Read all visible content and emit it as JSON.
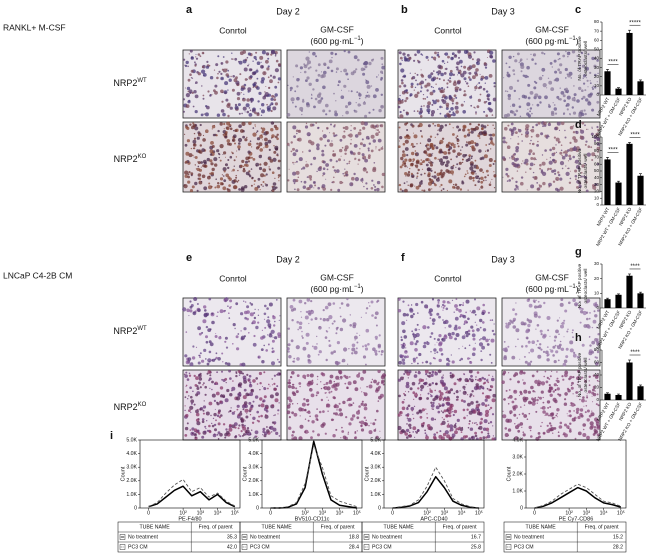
{
  "figure": {
    "genotypes": [
      {
        "base": "NRP2",
        "sup": "WT"
      },
      {
        "base": "NRP2",
        "sup": "KO"
      }
    ],
    "rows": [
      {
        "condition": "RANKL+ M-CSF",
        "panels": [
          {
            "letter": "a",
            "day": "Day 2",
            "control": "Conrtol",
            "treatment": [
              "GM-CSF",
              "(600 pg·mL",
              "−1",
              ")"
            ]
          },
          {
            "letter": "b",
            "day": "Day 3",
            "control": "Conrtol",
            "treatment": [
              "GM-CSF",
              "(600 pg·mL",
              "−1",
              ")"
            ]
          }
        ]
      },
      {
        "condition": "LNCaP C4-2B CM",
        "panels": [
          {
            "letter": "e",
            "day": "Day 2",
            "control": "Conrtol",
            "treatment": [
              "GM-CSF",
              "(600 pg·mL",
              "−1",
              ")"
            ]
          },
          {
            "letter": "f",
            "day": "Day 3",
            "control": "Conrtol",
            "treatment": [
              "GM-CSF",
              "(600 pg·mL",
              "−1",
              ")"
            ]
          }
        ]
      }
    ]
  },
  "chart_data": [
    {
      "type": "bar",
      "letter": "c",
      "ylabel": [
        "No. of TRAP positive",
        "osteoclasts/ well"
      ],
      "categories": [
        "NRP2 WT",
        "NRP2 WT + GM-CSF",
        "NRP2 KO",
        "NRP2 KO + GM-CSF"
      ],
      "values": [
        26,
        7,
        68,
        15
      ],
      "errors": [
        2,
        1,
        3,
        1.5
      ],
      "color": "#000000",
      "significance": [
        "****",
        "*****"
      ],
      "ylim": [
        0,
        80
      ],
      "yticks": [
        0,
        10,
        20,
        30,
        40,
        50,
        60,
        70,
        80
      ]
    },
    {
      "type": "bar",
      "letter": "d",
      "ylabel": [
        "No. of TRAP positive",
        "osteoclasts/ well"
      ],
      "categories": [
        "NRP2 WT",
        "NRP2 WT + GM-CSF",
        "NRP2 KO",
        "NRP2 KO + GM-CSF"
      ],
      "values": [
        67,
        33,
        90,
        43
      ],
      "errors": [
        3,
        2,
        2,
        3
      ],
      "color": "#000000",
      "significance": [
        "****",
        "****"
      ],
      "ylim": [
        0,
        100
      ],
      "yticks": [
        0,
        10,
        20,
        30,
        40,
        50,
        60,
        70,
        80,
        90,
        100
      ]
    },
    {
      "type": "bar",
      "letter": "g",
      "ylabel": [
        "No. of TRAP positive",
        "osteoclasts/ well"
      ],
      "categories": [
        "NRP2 WT",
        "NRP2 WT + GM-CSF",
        "NRP2 KO",
        "NRP2 KO + GM-CSF"
      ],
      "values": [
        6,
        9,
        22,
        10
      ],
      "errors": [
        0.7,
        0.6,
        1.2,
        0.8
      ],
      "color": "#000000",
      "significance": [
        null,
        "****"
      ],
      "ylim": [
        0,
        30
      ],
      "yticks": [
        0,
        10,
        20,
        30
      ]
    },
    {
      "type": "bar",
      "letter": "h",
      "ylabel": [
        "No. of TRAP positive",
        "osteoclasts/ well"
      ],
      "categories": [
        "NRP2 WT",
        "NRP2 WT + GM-CSF",
        "NRP2 KO",
        "NRP2 KO + GM-CSF"
      ],
      "values": [
        10,
        8,
        60,
        22
      ],
      "errors": [
        1.5,
        1.5,
        4,
        2
      ],
      "color": "#000000",
      "significance": [
        null,
        "****"
      ],
      "ylim": [
        0,
        80
      ],
      "yticks": [
        0,
        20,
        40,
        60,
        80
      ]
    },
    {
      "type": "line",
      "letter": "i",
      "xlabel": "PE-F4/80",
      "ylabel": "Count",
      "x": [
        0,
        0.5,
        1,
        1.5,
        2,
        2.5,
        3,
        3.5,
        4,
        4.5,
        5
      ],
      "series": [
        {
          "values": [
            100,
            300,
            800,
            1300,
            1600,
            900,
            1200,
            600,
            1000,
            400,
            100
          ],
          "color": "#000000",
          "dash": false
        },
        {
          "values": [
            100,
            400,
            1100,
            1700,
            2100,
            1200,
            1500,
            800,
            1100,
            500,
            150
          ],
          "color": "#555555",
          "dash": true
        }
      ],
      "xlim": [
        -0.5,
        5.3
      ],
      "xticks": [
        0,
        {
          "value": 2,
          "label": "10²"
        },
        {
          "value": 3,
          "label": "10³"
        },
        {
          "value": 4,
          "label": "10⁴"
        },
        {
          "value": 5,
          "label": "10⁵"
        }
      ],
      "ylim": [
        0,
        5000
      ],
      "yticks": [
        0,
        {
          "value": 1000,
          "label": "1.0K"
        },
        {
          "value": 2000,
          "label": "2.0K"
        },
        {
          "value": 3000,
          "label": "3.0K"
        },
        {
          "value": 4000,
          "label": "4.0K"
        },
        {
          "value": 5000,
          "label": "5.0K"
        }
      ],
      "table": {
        "header": [
          "TUBE NAME",
          "Freq. of parent"
        ],
        "rows": [
          [
            "No treatment",
            "35.3"
          ],
          [
            "PC3 CM",
            "42.0"
          ]
        ]
      }
    },
    {
      "type": "line",
      "xlabel": "BV510-CD11c",
      "ylabel": "Count",
      "x": [
        0,
        0.5,
        1,
        1.5,
        2,
        2.5,
        3,
        3.5,
        4,
        4.5,
        5
      ],
      "series": [
        {
          "values": [
            0,
            0,
            50,
            300,
            1500,
            4900,
            2500,
            600,
            200,
            100,
            0
          ],
          "color": "#000000",
          "dash": false
        },
        {
          "values": [
            0,
            0,
            100,
            400,
            1800,
            4600,
            3000,
            900,
            500,
            300,
            100
          ],
          "color": "#555555",
          "dash": true
        }
      ],
      "xlim": [
        -0.5,
        5.3
      ],
      "xticks": [
        0,
        {
          "value": 2,
          "label": "10²"
        },
        {
          "value": 3,
          "label": "10³"
        },
        {
          "value": 4,
          "label": "10⁴"
        },
        {
          "value": 5,
          "label": "10⁵"
        }
      ],
      "ylim": [
        0,
        5000
      ],
      "yticks": [
        0,
        {
          "value": 1000,
          "label": "1.0K"
        },
        {
          "value": 2000,
          "label": "2.0K"
        },
        {
          "value": 3000,
          "label": "3.0K"
        },
        {
          "value": 4000,
          "label": "4.0K"
        },
        {
          "value": 5000,
          "label": "5.0K"
        }
      ],
      "table": {
        "header": [
          "TUBE NAME",
          "Freq. of parent"
        ],
        "rows": [
          [
            "No treatment",
            "18.8"
          ],
          [
            "PC3 CM",
            "28.4"
          ]
        ]
      }
    },
    {
      "type": "line",
      "xlabel": "APC-CD40",
      "ylabel": "Count",
      "x": [
        0,
        0.5,
        1,
        1.5,
        2,
        2.5,
        3,
        3.5,
        4,
        4.5,
        5
      ],
      "series": [
        {
          "values": [
            0,
            50,
            150,
            400,
            1200,
            2300,
            1500,
            500,
            200,
            50,
            0
          ],
          "color": "#000000",
          "dash": false
        },
        {
          "values": [
            0,
            100,
            200,
            600,
            1600,
            3000,
            2000,
            700,
            300,
            100,
            0
          ],
          "color": "#555555",
          "dash": true
        }
      ],
      "xlim": [
        -0.5,
        5.3
      ],
      "xticks": [
        0,
        {
          "value": 2,
          "label": "10²"
        },
        {
          "value": 3,
          "label": "10³"
        },
        {
          "value": 4,
          "label": "10⁴"
        },
        {
          "value": 5,
          "label": "10⁵"
        }
      ],
      "ylim": [
        0,
        5000
      ],
      "yticks": [
        0,
        {
          "value": 1000,
          "label": "1.0K"
        },
        {
          "value": 2000,
          "label": "2.0K"
        },
        {
          "value": 3000,
          "label": "3.0K"
        },
        {
          "value": 4000,
          "label": "4.0K"
        },
        {
          "value": 5000,
          "label": "5.0K"
        }
      ],
      "table": {
        "header": [
          "TUBE NAME",
          "Freq. of parent"
        ],
        "rows": [
          [
            "No treatment",
            "16.7"
          ],
          [
            "PC3 CM",
            "25.8"
          ]
        ]
      }
    },
    {
      "type": "line",
      "xlabel": "PE Cy7-CD86",
      "ylabel": "Count",
      "x": [
        0,
        0.5,
        1,
        1.5,
        2,
        2.5,
        3,
        3.5,
        4,
        4.5,
        5
      ],
      "series": [
        {
          "values": [
            0,
            100,
            300,
            600,
            900,
            1200,
            1000,
            600,
            300,
            200,
            50
          ],
          "color": "#000000",
          "dash": false
        },
        {
          "values": [
            0,
            150,
            400,
            800,
            1100,
            1400,
            1200,
            800,
            400,
            300,
            100
          ],
          "color": "#555555",
          "dash": true
        }
      ],
      "xlim": [
        -0.5,
        5.3
      ],
      "xticks": [
        0,
        {
          "value": 2,
          "label": "10²"
        },
        {
          "value": 3,
          "label": "10³"
        },
        {
          "value": 4,
          "label": "10⁴"
        },
        {
          "value": 5,
          "label": "10⁵"
        }
      ],
      "ylim": [
        0,
        4000
      ],
      "yticks": [
        0,
        {
          "value": 1000,
          "label": "1.0K"
        },
        {
          "value": 2000,
          "label": "2.0K"
        },
        {
          "value": 3000,
          "label": "3.0K"
        },
        {
          "value": 4000,
          "label": "4.0K"
        }
      ],
      "table": {
        "header": [
          "TUBE NAME",
          "Freq. of parent"
        ],
        "rows": [
          [
            "No treatment",
            "15.2"
          ],
          [
            "PC3 CM",
            "28.2"
          ]
        ]
      }
    }
  ]
}
